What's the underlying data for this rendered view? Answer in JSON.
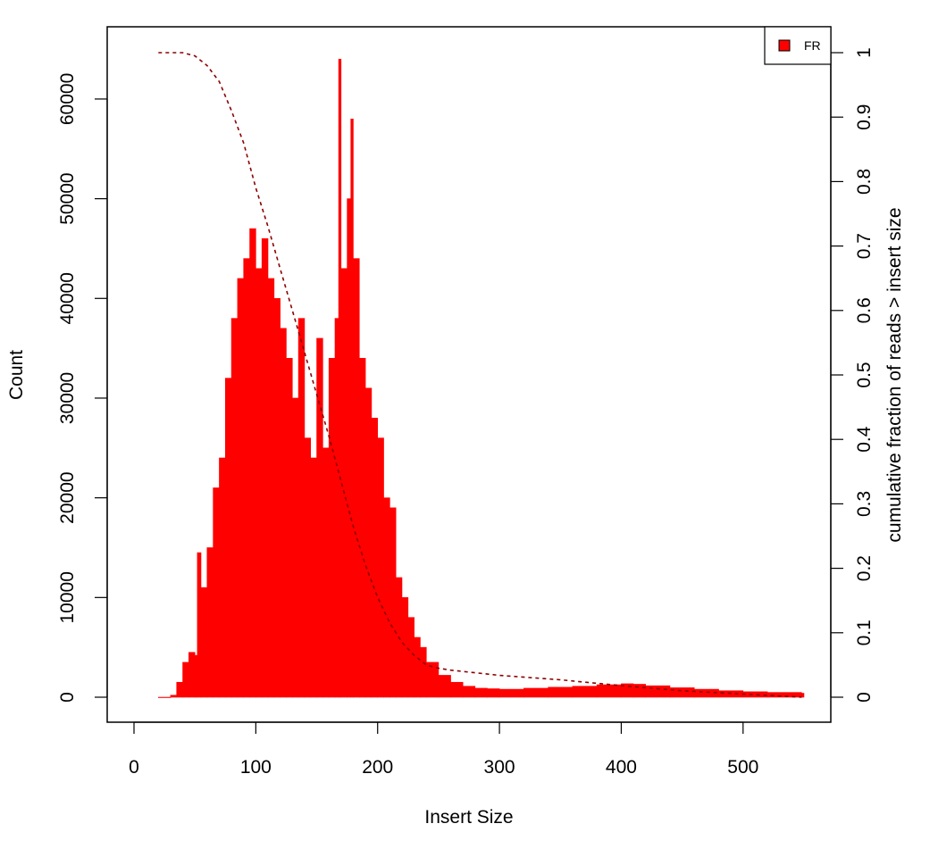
{
  "chart_data": {
    "type": "bar",
    "x_axis": {
      "label": "Insert Size",
      "range": [
        0,
        550
      ],
      "ticks": [
        0,
        100,
        200,
        300,
        400,
        500
      ],
      "tick_labels": [
        "0",
        "100",
        "200",
        "300",
        "400",
        "500"
      ]
    },
    "y_axis_left": {
      "label": "Count",
      "range": [
        0,
        65000
      ],
      "ticks": [
        0,
        10000,
        20000,
        30000,
        40000,
        50000,
        60000
      ],
      "tick_labels": [
        "0",
        "10000",
        "20000",
        "30000",
        "40000",
        "50000",
        "60000"
      ]
    },
    "y_axis_right": {
      "label": "cumulative fraction of reads > insert size",
      "range": [
        0,
        1
      ],
      "ticks": [
        0,
        0.1,
        0.2,
        0.3,
        0.4,
        0.5,
        0.6,
        0.7,
        0.8,
        0.9,
        1
      ],
      "tick_labels": [
        "0",
        "0.1",
        "0.2",
        "0.3",
        "0.4",
        "0.5",
        "0.6",
        "0.7",
        "0.8",
        "0.9",
        "1"
      ]
    },
    "legend": {
      "position": "top-right",
      "entries": [
        {
          "label": "FR",
          "color": "#ff0000"
        }
      ]
    },
    "grid": false,
    "series": [
      {
        "name": "FR",
        "kind": "histogram",
        "color": "#ff0000",
        "x": [
          20,
          30,
          35,
          40,
          45,
          50,
          52,
          55,
          60,
          65,
          70,
          75,
          80,
          85,
          90,
          95,
          100,
          105,
          110,
          115,
          120,
          125,
          130,
          135,
          140,
          145,
          150,
          155,
          160,
          165,
          168,
          170,
          175,
          178,
          180,
          185,
          190,
          195,
          200,
          205,
          210,
          215,
          220,
          225,
          230,
          235,
          240,
          250,
          260,
          270,
          280,
          290,
          300,
          320,
          340,
          360,
          380,
          400,
          410,
          420,
          440,
          460,
          480,
          500,
          520,
          548
        ],
        "values": [
          0,
          200,
          1500,
          3500,
          4500,
          4200,
          14500,
          11000,
          15000,
          21000,
          24000,
          32000,
          38000,
          42000,
          44000,
          47000,
          43000,
          46000,
          42000,
          40000,
          37000,
          34000,
          30000,
          38000,
          26000,
          24000,
          36000,
          25000,
          34000,
          38000,
          64000,
          43000,
          50000,
          58000,
          44000,
          34000,
          31000,
          28000,
          26000,
          20000,
          19000,
          12000,
          10000,
          8000,
          6000,
          5000,
          3500,
          2200,
          1500,
          1100,
          900,
          850,
          800,
          900,
          1000,
          1100,
          1250,
          1350,
          1300,
          1150,
          950,
          800,
          650,
          550,
          480,
          400
        ]
      },
      {
        "name": "cumulative fraction of reads > insert size",
        "kind": "line",
        "axis": "right",
        "style": "dashed",
        "color": "#8b0000",
        "x": [
          20,
          30,
          40,
          50,
          60,
          70,
          80,
          90,
          100,
          110,
          120,
          130,
          140,
          150,
          160,
          170,
          180,
          190,
          200,
          210,
          220,
          230,
          240,
          250,
          260,
          280,
          300,
          350,
          400,
          450,
          500,
          548
        ],
        "values": [
          1.0,
          1.0,
          1.0,
          0.995,
          0.98,
          0.955,
          0.91,
          0.86,
          0.79,
          0.73,
          0.665,
          0.6,
          0.535,
          0.47,
          0.405,
          0.335,
          0.265,
          0.205,
          0.155,
          0.115,
          0.085,
          0.065,
          0.05,
          0.045,
          0.042,
          0.038,
          0.034,
          0.027,
          0.018,
          0.01,
          0.005,
          0.0
        ]
      }
    ]
  }
}
